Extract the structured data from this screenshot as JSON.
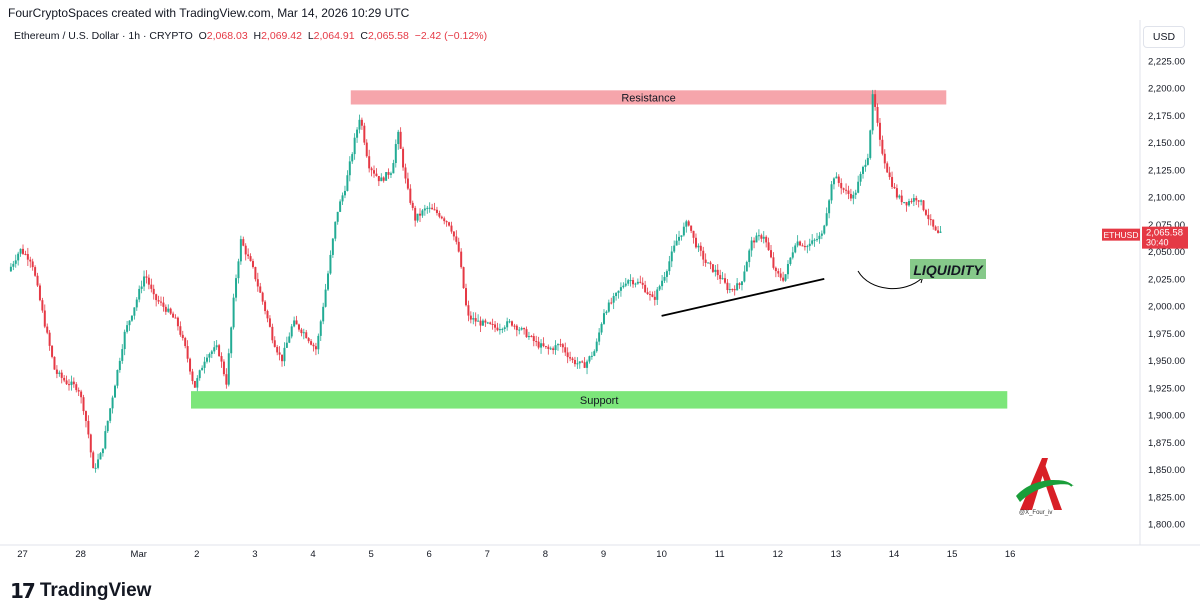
{
  "header": {
    "attribution": "FourCryptoSpaces created with TradingView.com, Mar 14, 2026 10:29 UTC",
    "symbol": "Ethereum / U.S. Dollar · 1h · CRYPTO",
    "open_label": "O",
    "open": "2,068.03",
    "high_label": "H",
    "high": "2,069.42",
    "low_label": "L",
    "low": "2,064.91",
    "close_label": "C",
    "close": "2,065.58",
    "change": "−2.42 (−0.12%)"
  },
  "currency_button": "USD",
  "price_tag": {
    "ticker": "ETHUSD",
    "price": "2,065.58",
    "countdown": "30:40",
    "color": "#e53945"
  },
  "footer": {
    "brand": "TradingView"
  },
  "watermark": {
    "handle": "@X_Four_iv"
  },
  "colors": {
    "up": "#22ab94",
    "down": "#e53945",
    "resistance": "#f6a5ab",
    "support": "#7ce67a",
    "liquidity_box": "#86c98a"
  },
  "chart_data": {
    "type": "candlestick",
    "y_axis": {
      "ylim": [
        1790,
        2235
      ],
      "ticks": [
        {
          "v": 2225,
          "label": "2,225.00"
        },
        {
          "v": 2200,
          "label": "2,200.00"
        },
        {
          "v": 2175,
          "label": "2,175.00"
        },
        {
          "v": 2150,
          "label": "2,150.00"
        },
        {
          "v": 2125,
          "label": "2,125.00"
        },
        {
          "v": 2100,
          "label": "2,100.00"
        },
        {
          "v": 2075,
          "label": "2,075.00"
        },
        {
          "v": 2050,
          "label": "2,050.00"
        },
        {
          "v": 2025,
          "label": "2,025.00"
        },
        {
          "v": 2000,
          "label": "2,000.00"
        },
        {
          "v": 1975,
          "label": "1,975.00"
        },
        {
          "v": 1950,
          "label": "1,950.00"
        },
        {
          "v": 1925,
          "label": "1,925.00"
        },
        {
          "v": 1900,
          "label": "1,900.00"
        },
        {
          "v": 1875,
          "label": "1,875.00"
        },
        {
          "v": 1850,
          "label": "1,850.00"
        },
        {
          "v": 1825,
          "label": "1,825.00"
        },
        {
          "v": 1800,
          "label": "1,800.00"
        }
      ]
    },
    "x_axis": {
      "xlim": [
        -3.25,
        16.2
      ],
      "ticks": [
        {
          "d": -3,
          "label": "27"
        },
        {
          "d": -2,
          "label": "28"
        },
        {
          "d": -1,
          "label": "Mar"
        },
        {
          "d": 0,
          "label": "2"
        },
        {
          "d": 1,
          "label": "3"
        },
        {
          "d": 2,
          "label": "4"
        },
        {
          "d": 3,
          "label": "5"
        },
        {
          "d": 4,
          "label": "6"
        },
        {
          "d": 5,
          "label": "7"
        },
        {
          "d": 6,
          "label": "8"
        },
        {
          "d": 7,
          "label": "9"
        },
        {
          "d": 8,
          "label": "10"
        },
        {
          "d": 9,
          "label": "11"
        },
        {
          "d": 10,
          "label": "12"
        },
        {
          "d": 11,
          "label": "13"
        },
        {
          "d": 12,
          "label": "14"
        },
        {
          "d": 13,
          "label": "15"
        },
        {
          "d": 14,
          "label": "16"
        }
      ]
    },
    "price_path": [
      [
        -3.2,
        2032
      ],
      [
        -3.0,
        2052
      ],
      [
        -2.8,
        2042
      ],
      [
        -2.6,
        1990
      ],
      [
        -2.4,
        1940
      ],
      [
        -2.2,
        1930
      ],
      [
        -2.0,
        1925
      ],
      [
        -1.9,
        1905
      ],
      [
        -1.8,
        1875
      ],
      [
        -1.75,
        1848
      ],
      [
        -1.6,
        1865
      ],
      [
        -1.4,
        1920
      ],
      [
        -1.2,
        1975
      ],
      [
        -1.0,
        2005
      ],
      [
        -0.85,
        2030
      ],
      [
        -0.7,
        2008
      ],
      [
        -0.5,
        1998
      ],
      [
        -0.3,
        1985
      ],
      [
        -0.15,
        1960
      ],
      [
        0.0,
        1925
      ],
      [
        0.2,
        1955
      ],
      [
        0.4,
        1962
      ],
      [
        0.55,
        1930
      ],
      [
        0.7,
        2020
      ],
      [
        0.8,
        2060
      ],
      [
        1.0,
        2035
      ],
      [
        1.2,
        2000
      ],
      [
        1.35,
        1970
      ],
      [
        1.5,
        1950
      ],
      [
        1.7,
        1985
      ],
      [
        1.9,
        1975
      ],
      [
        2.1,
        1960
      ],
      [
        2.3,
        2030
      ],
      [
        2.45,
        2085
      ],
      [
        2.6,
        2110
      ],
      [
        2.75,
        2150
      ],
      [
        2.85,
        2175
      ],
      [
        3.0,
        2130
      ],
      [
        3.2,
        2115
      ],
      [
        3.4,
        2125
      ],
      [
        3.5,
        2160
      ],
      [
        3.65,
        2110
      ],
      [
        3.8,
        2080
      ],
      [
        4.0,
        2090
      ],
      [
        4.2,
        2085
      ],
      [
        4.4,
        2075
      ],
      [
        4.55,
        2050
      ],
      [
        4.7,
        1990
      ],
      [
        4.9,
        1985
      ],
      [
        5.2,
        1980
      ],
      [
        5.45,
        1985
      ],
      [
        5.7,
        1975
      ],
      [
        5.9,
        1965
      ],
      [
        6.1,
        1960
      ],
      [
        6.3,
        1965
      ],
      [
        6.5,
        1950
      ],
      [
        6.7,
        1945
      ],
      [
        6.9,
        1960
      ],
      [
        7.05,
        1995
      ],
      [
        7.2,
        2005
      ],
      [
        7.45,
        2025
      ],
      [
        7.7,
        2020
      ],
      [
        7.9,
        2005
      ],
      [
        8.1,
        2030
      ],
      [
        8.3,
        2060
      ],
      [
        8.5,
        2078
      ],
      [
        8.6,
        2060
      ],
      [
        8.8,
        2040
      ],
      [
        9.0,
        2030
      ],
      [
        9.2,
        2015
      ],
      [
        9.4,
        2020
      ],
      [
        9.6,
        2060
      ],
      [
        9.8,
        2065
      ],
      [
        10.0,
        2030
      ],
      [
        10.15,
        2025
      ],
      [
        10.35,
        2060
      ],
      [
        10.55,
        2055
      ],
      [
        10.8,
        2065
      ],
      [
        11.0,
        2120
      ],
      [
        11.2,
        2105
      ],
      [
        11.35,
        2100
      ],
      [
        11.5,
        2125
      ],
      [
        11.6,
        2140
      ],
      [
        11.68,
        2195
      ],
      [
        11.8,
        2150
      ],
      [
        11.95,
        2120
      ],
      [
        12.1,
        2100
      ],
      [
        12.25,
        2095
      ],
      [
        12.45,
        2100
      ],
      [
        12.6,
        2085
      ],
      [
        12.75,
        2068
      ],
      [
        12.8,
        2065.58
      ]
    ],
    "resistance_zone": {
      "label": "Resistance",
      "y": [
        2185,
        2198
      ],
      "x": [
        2.65,
        12.9
      ]
    },
    "support_zone": {
      "label": "Support",
      "y": [
        1906,
        1922
      ],
      "x": [
        -0.1,
        13.95
      ]
    },
    "liquidity": {
      "label": "LIQUIDITY",
      "trendline": [
        [
          8.0,
          1991
        ],
        [
          10.8,
          2025
        ]
      ]
    }
  }
}
